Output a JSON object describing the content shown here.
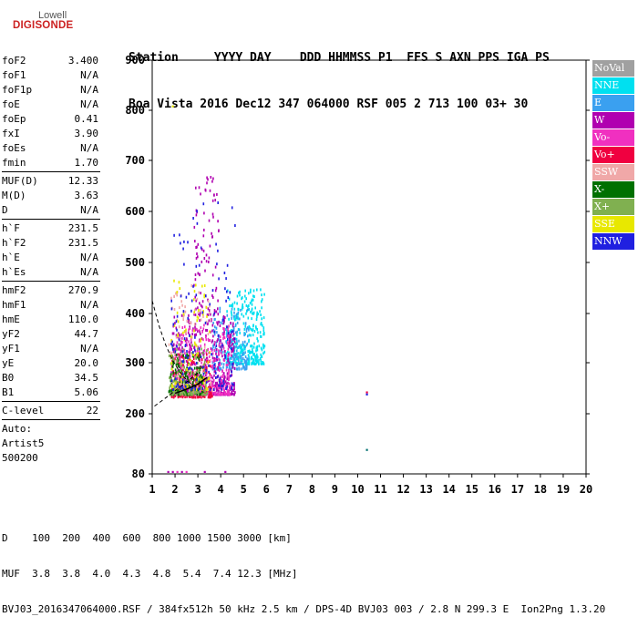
{
  "logo": {
    "line1": "Lowell",
    "line2": "DIGISONDE"
  },
  "header": {
    "line1": "Station     YYYY DAY    DDD HHMMSS P1  FFS S AXN PPS IGA PS",
    "line2": "Boa Vista 2016 Dec12 347 064000 RSF 005 2 713 100 03+ 30"
  },
  "params": [
    {
      "items": [
        {
          "label": "foF2",
          "value": "3.400"
        },
        {
          "label": "foF1",
          "value": "N/A"
        },
        {
          "label": "foF1p",
          "value": "N/A"
        },
        {
          "label": "foE",
          "value": "N/A"
        },
        {
          "label": "foEp",
          "value": "0.41"
        },
        {
          "label": "fxI",
          "value": "3.90"
        },
        {
          "label": "foEs",
          "value": "N/A"
        },
        {
          "label": "fmin",
          "value": "1.70"
        }
      ]
    },
    {
      "items": [
        {
          "label": "MUF(D)",
          "value": "12.33"
        },
        {
          "label": "M(D)",
          "value": "3.63"
        },
        {
          "label": "D",
          "value": "N/A"
        }
      ]
    },
    {
      "items": [
        {
          "label": "h`F",
          "value": "231.5"
        },
        {
          "label": "h`F2",
          "value": "231.5"
        },
        {
          "label": "h`E",
          "value": "N/A"
        },
        {
          "label": "h`Es",
          "value": "N/A"
        }
      ]
    },
    {
      "items": [
        {
          "label": "hmF2",
          "value": "270.9"
        },
        {
          "label": "hmF1",
          "value": "N/A"
        },
        {
          "label": "hmE",
          "value": "110.0"
        },
        {
          "label": "yF2",
          "value": "44.7"
        },
        {
          "label": "yF1",
          "value": "N/A"
        },
        {
          "label": "yE",
          "value": "20.0"
        },
        {
          "label": "B0",
          "value": "34.5"
        },
        {
          "label": "B1",
          "value": "5.06"
        }
      ]
    },
    {
      "items": [
        {
          "label": "C-level",
          "value": "22"
        }
      ]
    }
  ],
  "autoscale": [
    "Auto:",
    "Artist5",
    "500200"
  ],
  "legend": [
    {
      "label": "NoVal",
      "color": "#a0a0a0"
    },
    {
      "label": "NNE",
      "color": "#00e0f0"
    },
    {
      "label": "E",
      "color": "#3aa0f0"
    },
    {
      "label": "W",
      "color": "#b000b0"
    },
    {
      "label": "Vo-",
      "color": "#f030c0"
    },
    {
      "label": "Vo+",
      "color": "#f00040"
    },
    {
      "label": "SSW",
      "color": "#f0a8a8"
    },
    {
      "label": "X-",
      "color": "#007000"
    },
    {
      "label": "X+",
      "color": "#80b050"
    },
    {
      "label": "SSE",
      "color": "#e8e800"
    },
    {
      "label": "NNW",
      "color": "#2020e0"
    }
  ],
  "footer": {
    "line1": "D    100  200  400  600  800 1000 1500 3000 [km]",
    "line2": "MUF  3.8  3.8  4.0  4.3  4.8  5.4  7.4 12.3 [MHz]",
    "line3": "BVJ03_2016347064000.RSF / 384fx512h 50 kHz 2.5 km / DPS-4D BVJ03 003 / 2.8 N 299.3 E  Ion2Png 1.3.20"
  },
  "chart_data": {
    "type": "scatter",
    "title": "",
    "xlabel": "",
    "ylabel": "",
    "xlim": [
      1,
      20
    ],
    "ylim": [
      80,
      900
    ],
    "x_ticks": [
      "1",
      "2",
      "3",
      "4",
      "5",
      "6",
      "7",
      "8",
      "9",
      "10",
      "11",
      "12",
      "13",
      "14",
      "15",
      "16",
      "17",
      "18",
      "19",
      "20"
    ],
    "y_ticks": [
      "80",
      "200",
      "300",
      "400",
      "500",
      "600",
      "700",
      "800",
      "900"
    ],
    "y_tick_values": [
      80,
      200,
      300,
      400,
      500,
      600,
      700,
      800,
      900
    ],
    "grid": false,
    "legend_position": "right",
    "clusters": [
      {
        "series": "NNE",
        "color": "#00e0f0",
        "x_range": [
          4.2,
          5.9
        ],
        "y_range": [
          300,
          450
        ],
        "count": 320
      },
      {
        "series": "E",
        "color": "#3aa0f0",
        "x_range": [
          3.6,
          5.2
        ],
        "y_range": [
          290,
          420
        ],
        "count": 200
      },
      {
        "series": "W",
        "color": "#b000b0",
        "x_range": [
          1.8,
          4.6
        ],
        "y_range": [
          240,
          400
        ],
        "count": 500
      },
      {
        "series": "W",
        "color": "#b000b0",
        "x_range": [
          2.8,
          3.9
        ],
        "y_range": [
          400,
          670
        ],
        "count": 90
      },
      {
        "series": "Vo-",
        "color": "#f030c0",
        "x_range": [
          2.0,
          4.4
        ],
        "y_range": [
          240,
          380
        ],
        "count": 260
      },
      {
        "series": "Vo+",
        "color": "#f00040",
        "x_range": [
          1.8,
          3.6
        ],
        "y_range": [
          235,
          320
        ],
        "count": 180
      },
      {
        "series": "SSW",
        "color": "#f0a8a8",
        "x_range": [
          1.7,
          3.6
        ],
        "y_range": [
          240,
          460
        ],
        "count": 120
      },
      {
        "series": "X-",
        "color": "#007000",
        "x_range": [
          1.7,
          3.2
        ],
        "y_range": [
          240,
          320
        ],
        "count": 160
      },
      {
        "series": "X+",
        "color": "#80b050",
        "x_range": [
          1.7,
          3.4
        ],
        "y_range": [
          240,
          340
        ],
        "count": 130
      },
      {
        "series": "SSE",
        "color": "#e8e800",
        "x_range": [
          1.8,
          3.5
        ],
        "y_range": [
          250,
          480
        ],
        "count": 90
      },
      {
        "series": "NNW",
        "color": "#2020e0",
        "x_range": [
          1.8,
          4.6
        ],
        "y_range": [
          250,
          620
        ],
        "count": 150
      }
    ],
    "isolated_points": [
      {
        "x": 1.9,
        "y": 808,
        "color": "#e8e800"
      },
      {
        "x": 10.4,
        "y": 242,
        "color": "#f00040"
      },
      {
        "x": 10.4,
        "y": 238,
        "color": "#2020e0"
      },
      {
        "x": 10.4,
        "y": 128,
        "color": "#007070"
      },
      {
        "x": 1.7,
        "y": 84,
        "color": "#b000b0"
      },
      {
        "x": 1.9,
        "y": 84,
        "color": "#b000b0"
      },
      {
        "x": 2.1,
        "y": 84,
        "color": "#f030c0"
      },
      {
        "x": 2.3,
        "y": 84,
        "color": "#b000b0"
      },
      {
        "x": 2.5,
        "y": 84,
        "color": "#f030c0"
      },
      {
        "x": 3.3,
        "y": 84,
        "color": "#b000b0"
      },
      {
        "x": 4.2,
        "y": 84,
        "color": "#b000b0"
      }
    ],
    "profile_curve": [
      [
        2.0,
        240
      ],
      [
        2.3,
        245
      ],
      [
        2.6,
        250
      ],
      [
        3.0,
        258
      ],
      [
        3.3,
        268
      ],
      [
        3.4,
        271
      ]
    ],
    "dashed_curves": [
      [
        [
          1.0,
          425
        ],
        [
          1.3,
          375
        ],
        [
          1.6,
          335
        ],
        [
          1.9,
          305
        ],
        [
          2.2,
          282
        ],
        [
          2.6,
          262
        ],
        [
          3.0,
          250
        ]
      ],
      [
        [
          1.1,
          215
        ],
        [
          1.5,
          228
        ],
        [
          2.0,
          245
        ],
        [
          2.5,
          262
        ],
        [
          3.0,
          280
        ]
      ]
    ]
  }
}
